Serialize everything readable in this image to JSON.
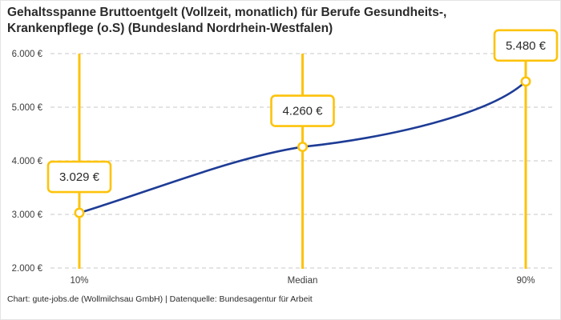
{
  "title": {
    "line1": "Gehaltsspanne Bruttoentgelt (Vollzeit, monatlich) für Berufe Gesundheits-,",
    "line2": "Krankenpflege (o.S) (Bundesland Nordrhein-Westfalen)"
  },
  "footer": {
    "text": "Chart: gute-jobs.de (Wollmilchsau GmbH) | Datenquelle: Bundesagentur für Arbeit"
  },
  "colors": {
    "accent_yellow": "#FDC30B",
    "line_blue": "#1E3C96",
    "grid_gray": "#C9C9C9",
    "text_dark": "#2A2A2A",
    "axis_text": "#3C3C3C"
  },
  "chart_data": {
    "type": "line",
    "title": "Gehaltsspanne Bruttoentgelt (Vollzeit, monatlich) für Berufe Gesundheits-, Krankenpflege (o.S) (Bundesland Nordrhein-Westfalen)",
    "x_categories": [
      "10%",
      "Median",
      "90%"
    ],
    "values": [
      3029,
      4260,
      5480
    ],
    "value_labels": [
      "3.029 €",
      "4.260 €",
      "5.480 €"
    ],
    "ylim": [
      2000,
      6000
    ],
    "yticks": [
      2000,
      3000,
      4000,
      5000,
      6000
    ],
    "ytick_labels": [
      "2.000 €",
      "3.000 €",
      "4.000 €",
      "5.000 €",
      "6.000 €"
    ],
    "xlabel": "",
    "ylabel": "",
    "legend": "none",
    "grid": "horizontal-dashed",
    "marker_style": "open-circle-on-yellow-vertical-line",
    "annotation_style": "value-in-yellow-outlined-box-above-each-point",
    "curve_shape": "s-curve, concave-down from 10% to Median, concave-up from Median to 90%"
  }
}
